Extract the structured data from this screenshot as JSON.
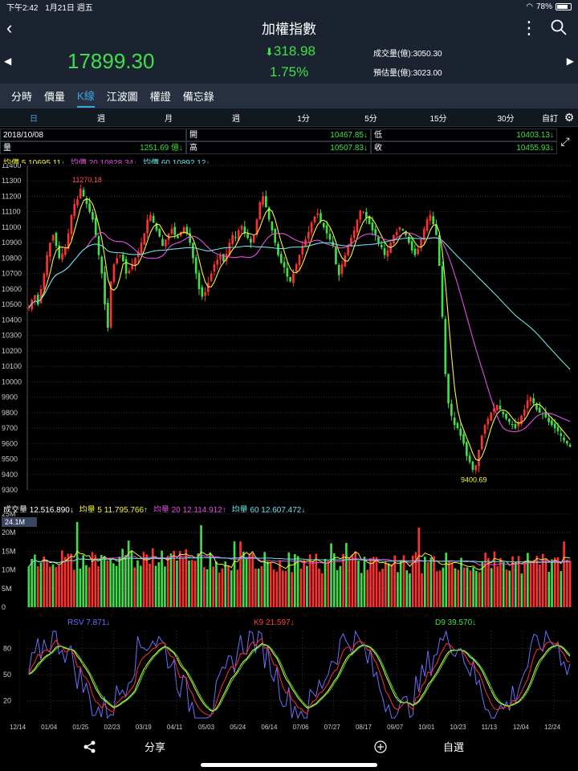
{
  "status": {
    "time": "下午2:42",
    "date": "1月21日 週五",
    "battery": "78%",
    "battery_level": 0.78
  },
  "nav": {
    "title": "加權指數"
  },
  "quote": {
    "price": "17899.30",
    "change": "318.98",
    "change_pct": "1.75%",
    "volume": "成交量(億):3050.30",
    "est_volume": "預估量(億):3023.00"
  },
  "tabs": [
    {
      "label": "分時"
    },
    {
      "label": "價量"
    },
    {
      "label": "K線",
      "active": true
    },
    {
      "label": "江波圖"
    },
    {
      "label": "權證"
    },
    {
      "label": "備忘錄"
    }
  ],
  "periods": [
    {
      "label": "日",
      "active": true
    },
    {
      "label": "週"
    },
    {
      "label": "月"
    },
    {
      "label": "週"
    },
    {
      "label": "1分"
    },
    {
      "label": "5分"
    },
    {
      "label": "15分"
    },
    {
      "label": "30分"
    },
    {
      "label": "自訂"
    }
  ],
  "info": {
    "date": "2018/10/08",
    "open_label": "開",
    "open": "10467.85↓",
    "low_label": "低",
    "low": "10403.13↓",
    "vol_label": "量",
    "vol": "1251.69 億↓",
    "high_label": "高",
    "high": "10507.83↓",
    "close_label": "收",
    "close": "10455.93↓"
  },
  "ma_legend": {
    "ma5": "均價 5 10695.11↓",
    "ma20": "均價 20 10828.34↓",
    "ma60": "均價 60 10892.12↓"
  },
  "vol_legend": {
    "total": "成交量 12,516,890↓",
    "v5": "均量 5 11,795,766↑",
    "v20": "均量 20 12,114,912↑",
    "v60": "均量 60 12,607,472↓"
  },
  "kd_legend": {
    "rsv": "RSV 7.871↓",
    "k": "K9 21.597↓",
    "d": "D9 39.570↓"
  },
  "colors": {
    "up": "#ff3030",
    "down": "#3ee04a",
    "ma5": "#f4f43a",
    "ma20": "#e050e0",
    "ma60": "#6ae0e8",
    "rsv": "#6a70ff"
  },
  "chart_data": [
    {
      "type": "candlestick",
      "y_ticks": [
        "11400",
        "11300",
        "11200",
        "11100",
        "11000",
        "10900",
        "10800",
        "10700",
        "10600",
        "10500",
        "10400",
        "10300",
        "10200",
        "10100",
        "10000",
        "9900",
        "9800",
        "9700",
        "9600",
        "9500",
        "9400",
        "9300"
      ],
      "ylim": [
        9300,
        11400
      ],
      "annotations": [
        {
          "label": "11270.18",
          "value": 11270.18
        },
        {
          "label": "9400.69",
          "value": 9400.69
        }
      ],
      "close_path": [
        10480,
        10530,
        10560,
        10500,
        10600,
        10700,
        10820,
        10900,
        10950,
        10880,
        10800,
        10830,
        10870,
        10960,
        11080,
        11150,
        11180,
        11250,
        11200,
        11150,
        11100,
        11050,
        10950,
        10820,
        10700,
        10500,
        10350,
        10650,
        10760,
        10800,
        10820,
        10780,
        10700,
        10720,
        10760,
        10800,
        10840,
        10900,
        10960,
        11050,
        11080,
        11030,
        10980,
        10940,
        10880,
        10920,
        10960,
        10990,
        10950,
        10930,
        10970,
        11000,
        10960,
        10900,
        10800,
        10700,
        10600,
        10550,
        10580,
        10640,
        10700,
        10760,
        10790,
        10820,
        10780,
        10830,
        10900,
        10950,
        10930,
        10980,
        11010,
        10960,
        10930,
        10900,
        10950,
        11050,
        11160,
        11200,
        11130,
        11050,
        10980,
        10900,
        10820,
        10770,
        10740,
        10680,
        10650,
        10700,
        10760,
        10820,
        10880,
        10920,
        10970,
        11030,
        11070,
        11090,
        11040,
        11000,
        10960,
        10920,
        10880,
        10760,
        10690,
        10760,
        10820,
        10880,
        10930,
        10980,
        11050,
        11110,
        11100,
        11060,
        11020,
        10980,
        10950,
        10900,
        10870,
        10820,
        10850,
        10900,
        10950,
        10970,
        11000,
        10980,
        10950,
        10900,
        10850,
        10820,
        10860,
        10920,
        10990,
        11050,
        11080,
        11020,
        10950,
        10750,
        10420,
        10050,
        9860,
        9780,
        9720,
        9700,
        9650,
        9600,
        9520,
        9480,
        9430,
        9460,
        9560,
        9650,
        9720,
        9760,
        9800,
        9830,
        9850,
        9820,
        9790,
        9760,
        9740,
        9720,
        9700,
        9740,
        9780,
        9820,
        9880,
        9900,
        9860,
        9820,
        9800,
        9790,
        9770,
        9740,
        9720,
        9700,
        9680,
        9650,
        9620,
        9600,
        9580
      ]
    },
    {
      "type": "bar",
      "y_ticks": [
        "25M",
        "20M",
        "15M",
        "10M",
        "5M",
        "0"
      ],
      "ylim": [
        0,
        25
      ],
      "current_label": "24.1M"
    },
    {
      "type": "line",
      "y_ticks": [
        "80",
        "50",
        "20"
      ],
      "ylim": [
        0,
        100
      ],
      "x_ticks": [
        "12/14",
        "01/04",
        "01/25",
        "02/23",
        "03/19",
        "04/11",
        "05/03",
        "05/24",
        "06/14",
        "07/06",
        "07/27",
        "08/17",
        "09/07",
        "10/01",
        "10/23",
        "11/13",
        "12/04",
        "12/24"
      ]
    }
  ],
  "bottom": {
    "share": "分享",
    "fav": "自選"
  }
}
